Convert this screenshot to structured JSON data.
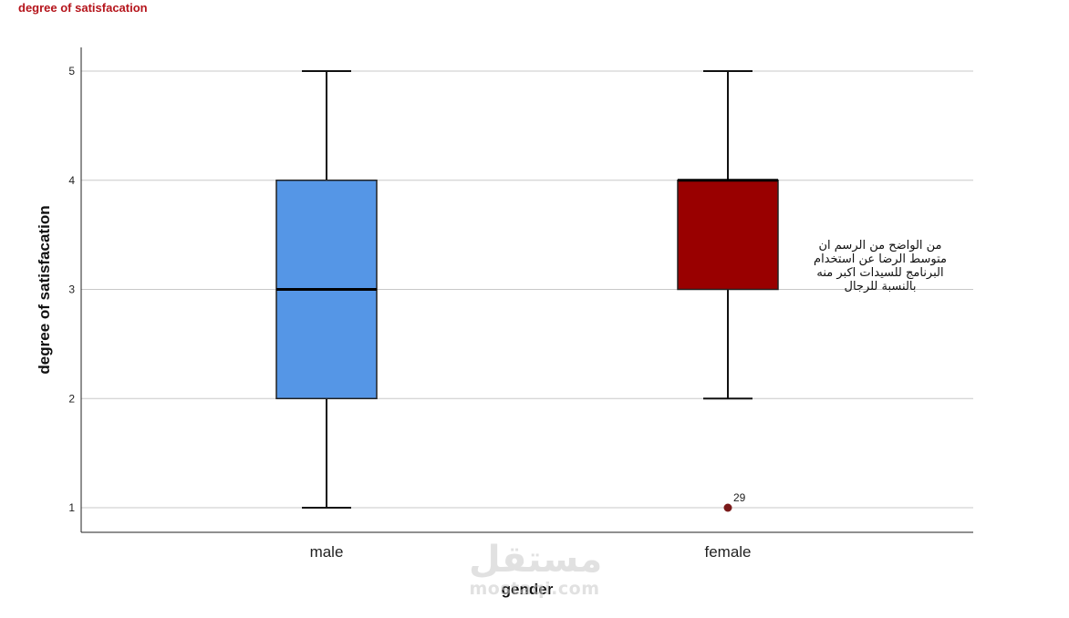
{
  "page_title": "degree of satisfacation",
  "watermark": {
    "arabic": "مستقل",
    "latin": "mostaqi.com"
  },
  "annotation": {
    "lines": [
      "من الواضح من الرسم ان",
      "متوسط الرضا عن استخدام",
      "البرنامج للسيدات اكبر منه",
      "بالنسبة للرجال"
    ]
  },
  "chart_data": {
    "type": "boxplot",
    "xlabel": "gender",
    "ylabel": "degree of satisfacation",
    "ylim": [
      0.8,
      5.2
    ],
    "yticks": [
      1,
      2,
      3,
      4,
      5
    ],
    "grid": true,
    "categories": [
      "male",
      "female"
    ],
    "boxes": [
      {
        "category": "male",
        "min": 1,
        "q1": 2,
        "median": 3,
        "q3": 4,
        "max": 5,
        "color": "#5596e6",
        "outliers": []
      },
      {
        "category": "female",
        "min": 2,
        "q1": 3,
        "median": 4,
        "q3": 4,
        "max": 5,
        "color": "#990000",
        "outliers": [
          {
            "value": 1,
            "label": "29",
            "color": "#7a1a1a"
          }
        ]
      }
    ]
  }
}
